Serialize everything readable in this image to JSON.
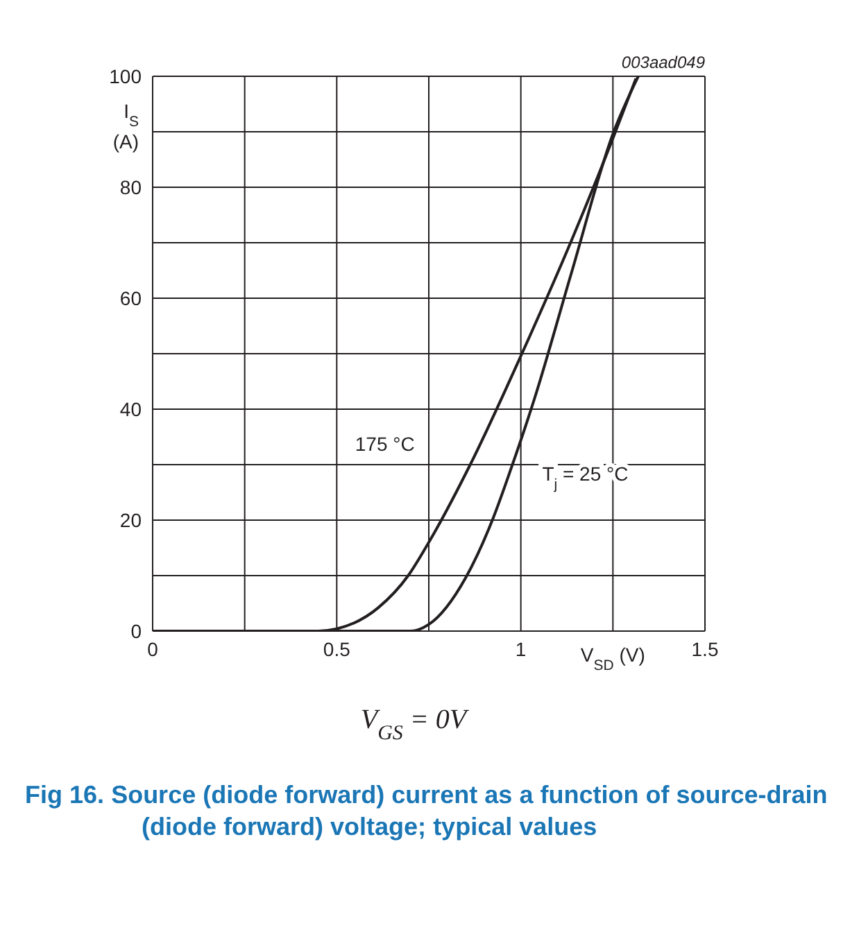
{
  "chart_data": {
    "type": "line",
    "xlabel": "V$_{SD}$ (V)",
    "ylabel": "I$_{S}$ (A)",
    "xlim": [
      0,
      1.5
    ],
    "ylim": [
      0,
      100
    ],
    "xticks": [
      0,
      {
        "value": 0.25,
        "label": null
      },
      0.5,
      {
        "value": 0.75,
        "label": null
      },
      1,
      {
        "value": 1.25,
        "label": null
      },
      1.5
    ],
    "yticks": [
      0,
      {
        "value": 10,
        "label": null
      },
      20,
      {
        "value": 30,
        "label": null
      },
      40,
      {
        "value": 50,
        "label": null
      },
      60,
      {
        "value": 70,
        "label": null
      },
      80,
      {
        "value": 90,
        "label": null
      },
      100
    ],
    "grid": true,
    "marker": "none",
    "line_style": "solid",
    "series": [
      {
        "name": "175 °C",
        "color": "#231f20",
        "x": [
          0,
          0.45,
          0.5,
          0.6125,
          0.694,
          0.75,
          0.8625,
          1.0,
          1.1375,
          1.25,
          1.3125
        ],
        "values": [
          0,
          0,
          0.4,
          4.2,
          10,
          16,
          30,
          49.6,
          70.4,
          88.8,
          99.6
        ]
      },
      {
        "name": "T$_{j}$ = 25 °C",
        "color": "#231f20",
        "x": [
          0,
          0.7,
          0.75,
          0.85,
          0.925,
          0.975,
          1.0375,
          1.1375,
          1.25,
          1.319
        ],
        "values": [
          0,
          0,
          1.2,
          9.6,
          20.4,
          29.6,
          42,
          64.6,
          89.6,
          100
        ]
      }
    ],
    "annotations": [
      "003aad049",
      "V$_{GS}$ = 0V",
      "Fig 16.  Source (diode forward) current as a function of source-drain (diode forward) voltage; typical values"
    ]
  }
}
